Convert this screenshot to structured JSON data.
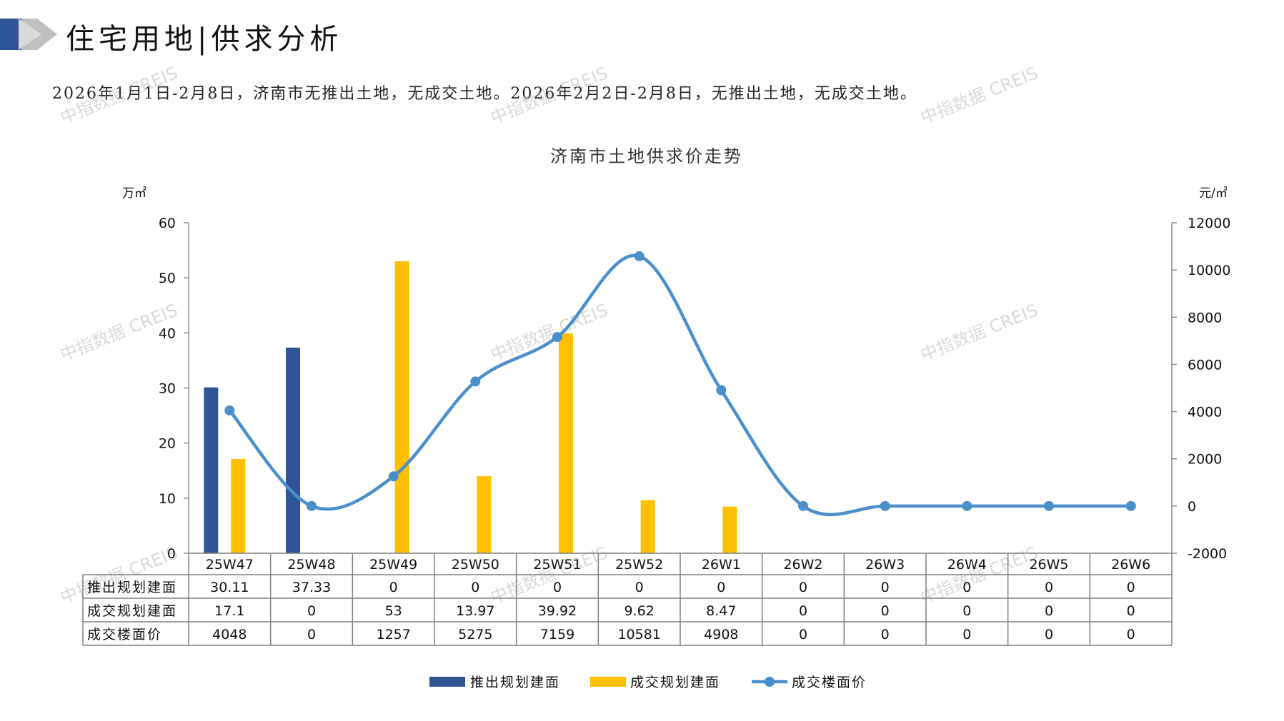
{
  "header": {
    "title": "住宅用地|供求分析",
    "summary": "2026年1月1日-2月8日，济南市无推出土地，无成交土地。2026年2月2日-2月8日，无推出土地，无成交土地。"
  },
  "watermark_text": "中指数据 CREIS",
  "colors": {
    "supply": "#2F5597",
    "deal": "#FFC000",
    "price": "#4A8FCC",
    "logo_dark": "#2F5597",
    "logo_light": "#BFBFBF"
  },
  "chart_data": {
    "type": "bar",
    "title": "济南市土地供求价走势",
    "y_left_unit": "万㎡",
    "y_right_unit": "元/㎡",
    "y_left_ticks": [
      0,
      10,
      20,
      30,
      40,
      50,
      60
    ],
    "y_right_ticks": [
      -2000,
      0,
      2000,
      4000,
      6000,
      8000,
      10000,
      12000
    ],
    "ylim_left": [
      0,
      60
    ],
    "ylim_right": [
      -2000,
      12000
    ],
    "categories": [
      "25W47",
      "25W48",
      "25W49",
      "25W50",
      "25W51",
      "25W52",
      "26W1",
      "26W2",
      "26W3",
      "26W4",
      "26W5",
      "26W6"
    ],
    "series": [
      {
        "name": "推出规划建面",
        "type": "bar",
        "axis": "left",
        "values": [
          30.11,
          37.33,
          0,
          0,
          0,
          0,
          0,
          0,
          0,
          0,
          0,
          0
        ],
        "labels": [
          "30.11",
          "37.33",
          "0",
          "0",
          "0",
          "0",
          "0",
          "0",
          "0",
          "0",
          "0",
          "0"
        ]
      },
      {
        "name": "成交规划建面",
        "type": "bar",
        "axis": "left",
        "values": [
          17.1,
          0,
          53,
          13.97,
          39.92,
          9.62,
          8.47,
          0,
          0,
          0,
          0,
          0
        ],
        "labels": [
          "17.1",
          "0",
          "53",
          "13.97",
          "39.92",
          "9.62",
          "8.47",
          "0",
          "0",
          "0",
          "0",
          "0"
        ]
      },
      {
        "name": "成交楼面价",
        "type": "line",
        "axis": "right",
        "values": [
          4048,
          0,
          1257,
          5275,
          7159,
          10581,
          4908,
          0,
          0,
          0,
          0,
          0
        ],
        "labels": [
          "4048",
          "0",
          "1257",
          "5275",
          "7159",
          "10581",
          "4908",
          "0",
          "0",
          "0",
          "0",
          "0"
        ]
      }
    ],
    "legend_position": "bottom",
    "grid": false
  }
}
